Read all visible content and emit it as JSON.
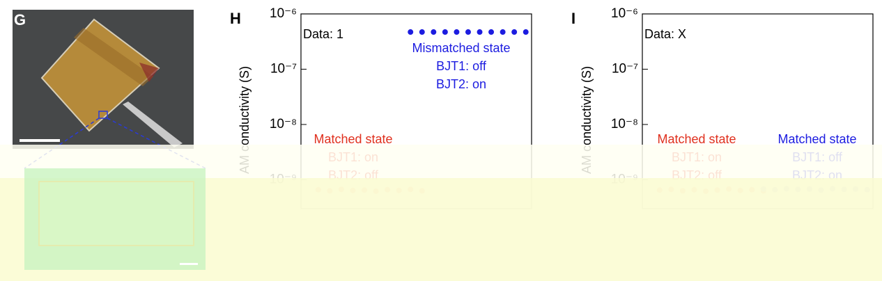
{
  "figure": {
    "panel_labels": [
      "G",
      "H",
      "I"
    ]
  },
  "chart_data": [
    {
      "type": "scatter",
      "data_label": "Data: 1",
      "ylabel": "AM conductivity (S)",
      "log_scale": true,
      "ylim": [
        3e-10,
        1e-06
      ],
      "yticks": [
        {
          "value": 1e-06,
          "label": "10⁻⁶"
        },
        {
          "value": 1e-07,
          "label": "10⁻⁷"
        },
        {
          "value": 1e-08,
          "label": "10⁻⁸"
        },
        {
          "value": 1e-09,
          "label": "10⁻⁹"
        }
      ],
      "categories": [
        null,
        null,
        null,
        null,
        null,
        null,
        null,
        null,
        null,
        null,
        null,
        null,
        null,
        null,
        null,
        null,
        null,
        null,
        null,
        null
      ],
      "series": [
        {
          "color": "#e8502e",
          "values": [
            null,
            6.6e-10,
            6.3e-10,
            6.7e-10,
            6.4e-10,
            6.5e-10,
            6.2e-10,
            6.6e-10,
            6.4e-10,
            6.7e-10,
            6.3e-10,
            null,
            null,
            null,
            null,
            null,
            null,
            null,
            null,
            null
          ]
        },
        {
          "color": "#1c1ce0",
          "values": [
            null,
            null,
            null,
            null,
            null,
            null,
            null,
            null,
            null,
            4.7e-07,
            4.7e-07,
            4.7e-07,
            4.7e-07,
            4.7e-07,
            4.7e-07,
            4.7e-07,
            4.7e-07,
            4.7e-07,
            4.7e-07,
            4.7e-07
          ]
        }
      ],
      "annotations": [
        {
          "color": "#1c1ce0",
          "lines": [
            "Mismatched state",
            "BJT1: off",
            "BJT2: on"
          ]
        },
        {
          "color": "#e0301e",
          "lines": [
            "Matched state",
            "BJT1: on",
            "BJT2: off"
          ]
        }
      ]
    },
    {
      "type": "scatter",
      "data_label": "Data: X",
      "ylabel": "AM conductivity (S)",
      "log_scale": true,
      "ylim": [
        3e-10,
        1e-06
      ],
      "yticks": [
        {
          "value": 1e-06,
          "label": "10⁻⁶"
        },
        {
          "value": 1e-07,
          "label": "10⁻⁷"
        },
        {
          "value": 1e-08,
          "label": "10⁻⁸"
        },
        {
          "value": 1e-09,
          "label": "10⁻⁹"
        }
      ],
      "categories": [
        null,
        null,
        null,
        null,
        null,
        null,
        null,
        null,
        null,
        null,
        null,
        null,
        null,
        null,
        null,
        null,
        null,
        null,
        null,
        null
      ],
      "series": [
        {
          "color": "#e8502e",
          "values": [
            null,
            6.5e-10,
            6.7e-10,
            6.3e-10,
            6.6e-10,
            6.2e-10,
            6.5e-10,
            6.8e-10,
            6.4e-10,
            6.6e-10,
            6.3e-10,
            null,
            null,
            null,
            null,
            null,
            null,
            null,
            null,
            null
          ]
        },
        {
          "color": "#6a5adf",
          "values": [
            null,
            null,
            null,
            null,
            null,
            null,
            null,
            null,
            null,
            null,
            6.8e-10,
            6.6e-10,
            6.9e-10,
            6.7e-10,
            6.8e-10,
            6.5e-10,
            6.9e-10,
            6.7e-10,
            6.8e-10,
            6.6e-10
          ]
        }
      ],
      "annotations": [
        {
          "color": "#e0301e",
          "lines": [
            "Matched state",
            "BJT1: on",
            "BJT2: off"
          ]
        },
        {
          "color": "#1c1ce0",
          "lines": [
            "Matched state",
            "BJT1: off",
            "BJT2: on"
          ]
        }
      ]
    }
  ]
}
